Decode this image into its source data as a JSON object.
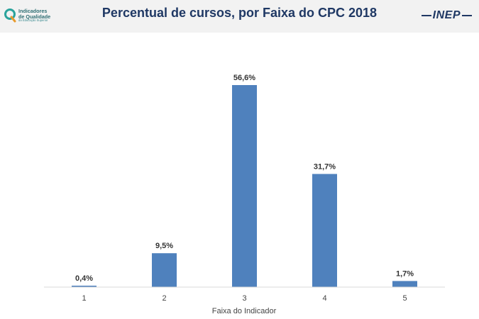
{
  "header": {
    "title": "Percentual de cursos, por Faixa do CPC 2018",
    "logo_left": {
      "line1": "Indicadores",
      "line2": "de Qualidade",
      "line3": "da Educação Superior"
    },
    "logo_right": "INEP"
  },
  "chart_data": {
    "type": "bar",
    "title": "Percentual de cursos, por Faixa do CPC 2018",
    "xlabel": "Faixa do Indicador",
    "ylabel": "",
    "categories": [
      "1",
      "2",
      "3",
      "4",
      "5"
    ],
    "values": [
      0.4,
      9.5,
      56.6,
      31.7,
      1.7
    ],
    "data_labels": [
      "0,4%",
      "9,5%",
      "56,6%",
      "31,7%",
      "1,7%"
    ],
    "ylim": [
      0,
      60
    ],
    "grid": false,
    "legend": "none",
    "bar_color": "#4f81bd"
  }
}
